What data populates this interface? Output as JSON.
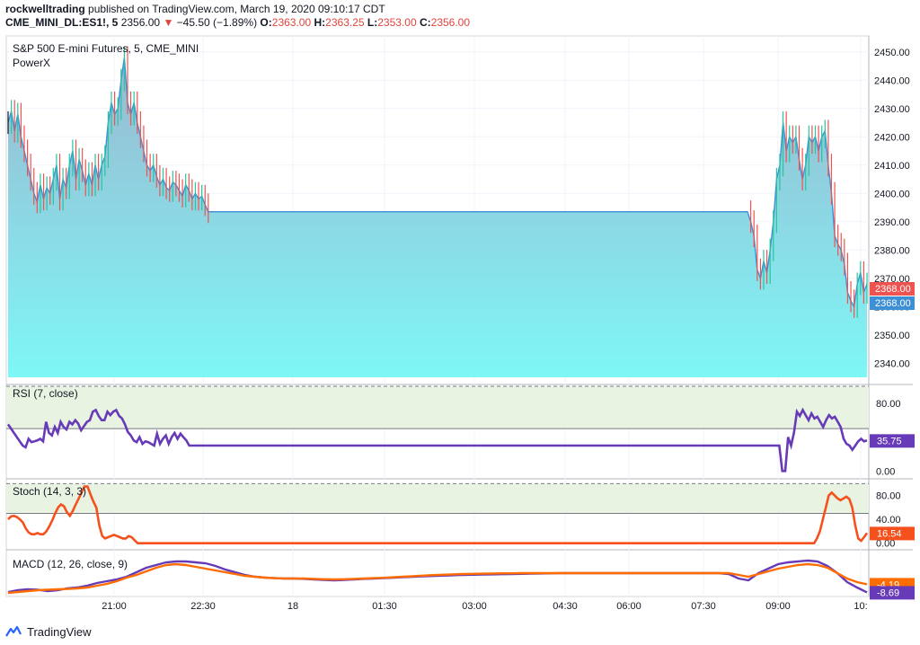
{
  "header": {
    "author": "rockwelltrading",
    "published_text": "published on TradingView.com, March 19, 2020 09:10:17 CDT",
    "symbol": "CME_MINI_DL:ES1!, 5",
    "last": "2356.00",
    "change": "−45.50 (−1.89%)",
    "o_label": "O:",
    "o": "2363.00",
    "h_label": "H:",
    "h": "2363.25",
    "l_label": "L:",
    "l": "2353.00",
    "c_label": "C:",
    "c": "2356.00"
  },
  "footer": {
    "brand": "TradingView"
  },
  "colors": {
    "up": "#26c6a0",
    "down": "#ef5350",
    "neutral": "#131722",
    "price_line": "#3d8fd6",
    "area_top": "#9ab8d0",
    "area_bottom": "#7ef7f7",
    "rsi": "#673ab7",
    "stoch": "#f4511e",
    "macd": "#673ab7",
    "signal": "#ff6d00",
    "band_fill": "#e8f3e2"
  },
  "chart_data": [
    {
      "type": "line",
      "title": "S&P 500 E-mini Futures, 5, CME_MINI",
      "indicator": "PowerX",
      "ylim": [
        2335,
        2455
      ],
      "y_ticks": [
        2450.0,
        2440.0,
        2430.0,
        2420.0,
        2410.0,
        2400.0,
        2390.0,
        2380.0,
        2370.0,
        2360.0,
        2350.0,
        2340.0
      ],
      "price_labels": [
        "2368.00",
        "2368.00"
      ],
      "x_ticks": [
        "21:00",
        "22:30",
        "18",
        "01:30",
        "03:00",
        "04:30",
        "06:00",
        "07:30",
        "09:00",
        "10:"
      ],
      "close_series": [
        2425,
        2429,
        2422,
        2428,
        2420,
        2415,
        2410,
        2405,
        2400,
        2397,
        2403,
        2398,
        2402,
        2400,
        2405,
        2410,
        2398,
        2405,
        2402,
        2410,
        2415,
        2405,
        2412,
        2408,
        2403,
        2407,
        2403,
        2410,
        2405,
        2410,
        2413,
        2425,
        2432,
        2428,
        2430,
        2440,
        2448,
        2432,
        2428,
        2432,
        2425,
        2420,
        2415,
        2410,
        2408,
        2410,
        2406,
        2403,
        2405,
        2402,
        2401,
        2404,
        2403,
        2401,
        2399,
        2403,
        2401,
        2398,
        2400,
        2398,
        2399,
        2396,
        2393.5,
        2393.5,
        2393.5,
        2393.5,
        2393.5,
        2393.5,
        2393.5,
        2393.5,
        2393.5,
        2393.5,
        2393.5,
        2393.5,
        2393.5,
        2393.5,
        2393.5,
        2393.5,
        2393.5,
        2393.5,
        2393.5,
        2393.5,
        2393.5,
        2393.5,
        2393.5,
        2393.5,
        2393.5,
        2393.5,
        2393.5,
        2393.5,
        2393.5,
        2393.5,
        2393.5,
        2393.5,
        2393.5,
        2393.5,
        2393.5,
        2393.5,
        2393.5,
        2393.5,
        2393.5,
        2393.5,
        2393.5,
        2393.5,
        2393.5,
        2393.5,
        2393.5,
        2393.5,
        2393.5,
        2393.5,
        2393.5,
        2393.5,
        2393.5,
        2393.5,
        2393.5,
        2393.5,
        2393.5,
        2393.5,
        2393.5,
        2393.5,
        2393.5,
        2393.5,
        2393.5,
        2393.5,
        2393.5,
        2393.5,
        2393.5,
        2393.5,
        2393.5,
        2393.5,
        2393.5,
        2393.5,
        2393.5,
        2393.5,
        2393.5,
        2393.5,
        2393.5,
        2393.5,
        2393.5,
        2393.5,
        2393.5,
        2393.5,
        2393.5,
        2393.5,
        2393.5,
        2393.5,
        2393.5,
        2393.5,
        2393.5,
        2393.5,
        2393.5,
        2393.5,
        2393.5,
        2393.5,
        2393.5,
        2393.5,
        2393.5,
        2393.5,
        2393.5,
        2393.5,
        2393.5,
        2393.5,
        2393.5,
        2393.5,
        2393.5,
        2393.5,
        2393.5,
        2393.5,
        2393.5,
        2393.5,
        2393.5,
        2393.5,
        2393.5,
        2393.5,
        2393.5,
        2393.5,
        2393.5,
        2393.5,
        2393.5,
        2393.5,
        2393.5,
        2393.5,
        2393.5,
        2393.5,
        2393.5,
        2393.5,
        2393.5,
        2393.5,
        2393.5,
        2393.5,
        2393.5,
        2393.5,
        2393.5,
        2393.5,
        2393.5,
        2393.5,
        2393.5,
        2393.5,
        2393.5,
        2393.5,
        2393.5,
        2393.5,
        2393.5,
        2393.5,
        2393.5,
        2393.5,
        2393.5,
        2393.5,
        2393.5,
        2393.5,
        2393.5,
        2393.5,
        2393.5,
        2393.5,
        2393.5,
        2393.5,
        2393.5,
        2393.5,
        2393.5,
        2393.5,
        2393.5,
        2393.5,
        2393.5,
        2393.5,
        2393.5,
        2393.5,
        2393.5,
        2393.5,
        2393.5,
        2393.5,
        2390,
        2385,
        2373,
        2370,
        2376,
        2372,
        2380,
        2390,
        2405,
        2410,
        2425,
        2415,
        2420,
        2418,
        2420,
        2412,
        2405,
        2410,
        2420,
        2418,
        2420,
        2415,
        2420,
        2422,
        2410,
        2400,
        2385,
        2382,
        2380,
        2375,
        2365,
        2362,
        2360,
        2368,
        2372,
        2365,
        2368
      ]
    },
    {
      "type": "line",
      "title": "RSI (7, close)",
      "ylim": [
        -5,
        100
      ],
      "bands": [
        50,
        100
      ],
      "y_ticks": [
        "80.00",
        "0.00"
      ],
      "last_label": "35.75",
      "values": [
        55,
        50,
        45,
        40,
        35,
        30,
        28,
        38,
        34,
        35,
        36,
        38,
        35,
        58,
        45,
        42,
        52,
        45,
        58,
        52,
        49,
        58,
        55,
        60,
        56,
        48,
        53,
        58,
        60,
        70,
        72,
        65,
        60,
        60,
        70,
        66,
        70,
        72,
        65,
        62,
        55,
        46,
        42,
        36,
        34,
        40,
        32,
        35,
        34,
        32,
        30,
        44,
        32,
        38,
        42,
        32,
        40,
        45,
        38,
        44,
        40,
        36,
        30,
        30,
        30,
        30,
        30,
        30,
        30,
        30,
        30,
        30,
        30,
        30,
        30,
        30,
        30,
        30,
        30,
        30,
        30,
        30,
        30,
        30,
        30,
        30,
        30,
        30,
        30,
        30,
        30,
        30,
        30,
        30,
        30,
        30,
        30,
        30,
        30,
        30,
        30,
        30,
        30,
        30,
        30,
        30,
        30,
        30,
        30,
        30,
        30,
        30,
        30,
        30,
        30,
        30,
        30,
        30,
        30,
        30,
        30,
        30,
        30,
        30,
        30,
        30,
        30,
        30,
        30,
        30,
        30,
        30,
        30,
        30,
        30,
        30,
        30,
        30,
        30,
        30,
        30,
        30,
        30,
        30,
        30,
        30,
        30,
        30,
        30,
        30,
        30,
        30,
        30,
        30,
        30,
        30,
        30,
        30,
        30,
        30,
        30,
        30,
        30,
        30,
        30,
        30,
        30,
        30,
        30,
        30,
        30,
        30,
        30,
        30,
        30,
        30,
        30,
        30,
        30,
        30,
        30,
        30,
        30,
        30,
        30,
        30,
        30,
        30,
        30,
        30,
        30,
        30,
        30,
        30,
        30,
        30,
        30,
        30,
        30,
        30,
        30,
        30,
        30,
        30,
        30,
        30,
        30,
        30,
        30,
        30,
        30,
        30,
        30,
        30,
        30,
        30,
        30,
        30,
        30,
        30,
        30,
        30,
        30,
        30,
        30,
        30,
        30,
        30,
        30,
        30,
        30,
        30,
        30,
        30,
        30,
        30,
        30,
        30,
        30,
        30,
        30,
        30,
        30,
        30,
        30,
        30,
        30,
        30,
        30,
        30,
        30,
        30,
        30,
        30,
        30,
        30,
        30,
        30,
        30,
        30,
        30,
        30,
        30,
        30,
        30,
        0,
        0,
        40,
        30,
        45,
        70,
        65,
        72,
        66,
        60,
        68,
        62,
        64,
        58,
        52,
        60,
        66,
        62,
        64,
        58,
        52,
        38,
        32,
        30,
        25,
        30,
        35,
        38,
        35,
        36
      ]
    },
    {
      "type": "line",
      "title": "Stoch (14, 3, 3)",
      "ylim": [
        -5,
        105
      ],
      "bands": [
        50,
        100
      ],
      "y_ticks": [
        "80.00",
        "40.00",
        "0.00"
      ],
      "last_label": "16.54",
      "values": [
        40,
        45,
        46,
        44,
        40,
        35,
        25,
        18,
        15,
        15,
        17,
        15,
        15,
        20,
        28,
        38,
        50,
        60,
        65,
        62,
        52,
        46,
        54,
        65,
        75,
        85,
        95,
        95,
        82,
        70,
        60,
        30,
        12,
        8,
        10,
        12,
        14,
        12,
        10,
        8,
        8,
        12,
        10,
        5,
        0,
        0,
        0,
        0,
        0,
        0,
        0,
        0,
        0,
        0,
        0,
        0,
        0,
        0,
        0,
        0,
        0,
        0,
        0,
        0,
        0,
        0,
        0,
        0,
        0,
        0,
        0,
        0,
        0,
        0,
        0,
        0,
        0,
        0,
        0,
        0,
        0,
        0,
        0,
        0,
        0,
        0,
        0,
        0,
        0,
        0,
        0,
        0,
        0,
        0,
        0,
        0,
        0,
        0,
        0,
        0,
        0,
        0,
        0,
        0,
        0,
        0,
        0,
        0,
        0,
        0,
        0,
        0,
        0,
        0,
        0,
        0,
        0,
        0,
        0,
        0,
        0,
        0,
        0,
        0,
        0,
        0,
        0,
        0,
        0,
        0,
        0,
        0,
        0,
        0,
        0,
        0,
        0,
        0,
        0,
        0,
        0,
        0,
        0,
        0,
        0,
        0,
        0,
        0,
        0,
        0,
        0,
        0,
        0,
        0,
        0,
        0,
        0,
        0,
        0,
        0,
        0,
        0,
        0,
        0,
        0,
        0,
        0,
        0,
        0,
        0,
        0,
        0,
        0,
        0,
        0,
        0,
        0,
        0,
        0,
        0,
        0,
        0,
        0,
        0,
        0,
        0,
        0,
        0,
        0,
        0,
        0,
        0,
        0,
        0,
        0,
        0,
        0,
        0,
        0,
        0,
        0,
        0,
        0,
        0,
        0,
        0,
        0,
        0,
        0,
        0,
        0,
        0,
        0,
        0,
        0,
        0,
        0,
        0,
        0,
        0,
        0,
        0,
        0,
        0,
        0,
        0,
        0,
        0,
        0,
        0,
        0,
        0,
        0,
        0,
        0,
        0,
        0,
        0,
        0,
        0,
        0,
        0,
        0,
        0,
        0,
        0,
        0,
        0,
        0,
        0,
        0,
        0,
        0,
        0,
        0,
        0,
        0,
        0,
        0,
        0,
        0,
        0,
        0,
        0,
        0,
        0,
        0,
        0,
        0,
        0,
        0,
        0,
        0,
        0,
        0,
        8,
        20,
        40,
        60,
        80,
        85,
        80,
        75,
        72,
        75,
        78,
        74,
        60,
        30,
        8,
        4,
        10,
        17
      ]
    },
    {
      "type": "line",
      "title": "MACD (12, 26, close, 9)",
      "ylim": [
        -10,
        14
      ],
      "y_ticks": [
        "-4.19",
        "-8.69"
      ],
      "series_macd": [
        -8.5,
        -7.5,
        -7.0,
        -7.2,
        -8.0,
        -7.5,
        -6.5,
        -6.0,
        -5.0,
        -3.5,
        -2.5,
        -1.5,
        0.0,
        2.5,
        5.0,
        6.5,
        8.0,
        8.5,
        8.5,
        8.0,
        7.5,
        6.0,
        4.0,
        2.5,
        1.0,
        0.0,
        -0.5,
        -0.8,
        -1.0,
        -1.0,
        -1.2,
        -1.5,
        -1.8,
        -2.0,
        -1.8,
        -1.5,
        -1.2,
        -1.0,
        -0.8,
        -0.5,
        -0.3,
        0.0,
        0.2,
        0.4,
        0.6,
        0.8,
        1.0,
        1.1,
        1.2,
        1.3,
        1.4,
        1.5,
        1.6,
        1.7,
        1.8,
        1.9,
        2.0,
        2.0,
        2.0,
        2.0,
        2.0,
        2.0,
        2.0,
        2.0,
        2.0,
        2.0,
        2.0,
        2.0,
        2.0,
        2.0,
        2.0,
        2.0,
        2.0,
        1.5,
        -1.0,
        -2.0,
        2.0,
        4.5,
        7.0,
        8.0,
        8.5,
        9.0,
        8.5,
        6.0,
        2.0,
        -3.0,
        -6.0,
        -8.69
      ],
      "series_signal": [
        -9.0,
        -8.5,
        -8.0,
        -7.5,
        -7.2,
        -7.0,
        -6.8,
        -6.5,
        -6.0,
        -5.0,
        -4.0,
        -2.5,
        -0.5,
        1.0,
        3.0,
        5.0,
        6.5,
        7.0,
        6.5,
        5.5,
        4.5,
        3.5,
        2.5,
        1.5,
        0.5,
        0.0,
        -0.5,
        -0.8,
        -1.0,
        -1.0,
        -1.0,
        -1.2,
        -1.4,
        -1.5,
        -1.4,
        -1.2,
        -1.0,
        -0.8,
        -0.6,
        -0.3,
        0.0,
        0.3,
        0.6,
        0.9,
        1.1,
        1.3,
        1.5,
        1.6,
        1.7,
        1.8,
        1.9,
        1.9,
        2.0,
        2.0,
        2.0,
        2.0,
        2.0,
        2.0,
        2.0,
        2.0,
        2.0,
        2.0,
        2.0,
        2.0,
        2.0,
        2.0,
        2.0,
        2.0,
        2.0,
        2.0,
        2.0,
        2.0,
        2.0,
        2.0,
        1.0,
        0.0,
        1.5,
        3.0,
        4.5,
        5.5,
        6.5,
        7.0,
        6.5,
        5.0,
        2.0,
        -1.0,
        -3.0,
        -4.19
      ],
      "last_labels": [
        "-4.19",
        "-8.69"
      ]
    }
  ]
}
